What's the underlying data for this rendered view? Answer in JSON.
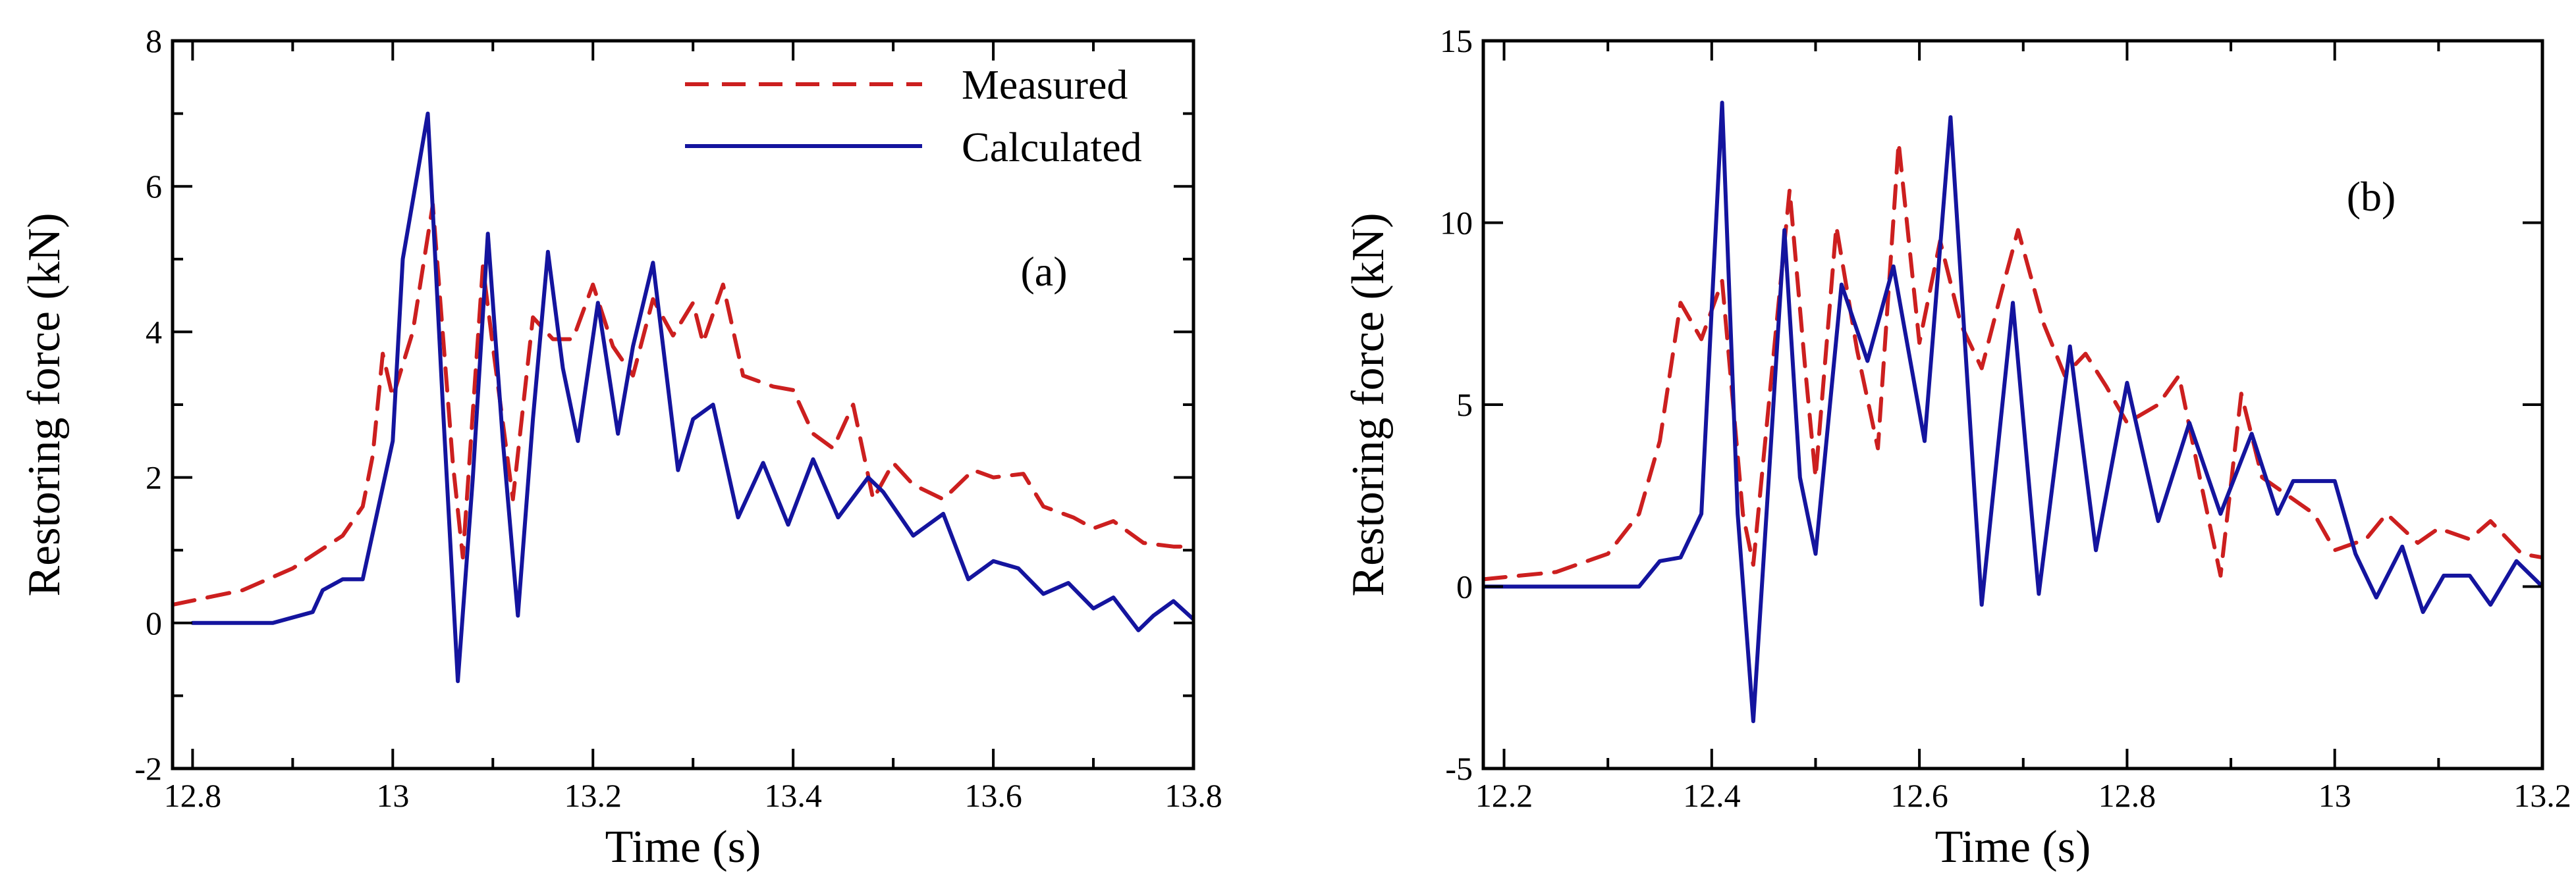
{
  "colors": {
    "measured": "#cc1f1f",
    "calculated": "#14149e",
    "axis": "#000000"
  },
  "legend": {
    "measured_label": "Measured",
    "calculated_label": "Calculated"
  },
  "chart_data": [
    {
      "type": "line",
      "panel_label": "(a)",
      "title": "",
      "xlabel": "Time (s)",
      "ylabel": "Restoring force (kN)",
      "xlim": [
        12.78,
        13.8
      ],
      "ylim": [
        -2,
        8
      ],
      "xticks": [
        12.8,
        12.9,
        13.0,
        13.1,
        13.2,
        13.3,
        13.4,
        13.5,
        13.6,
        13.7,
        13.8
      ],
      "xtick_labels": [
        "12.8",
        "13",
        "13.2",
        "13.4",
        "13.6",
        "13.8"
      ],
      "yticks": [
        -2,
        -1,
        0,
        1,
        2,
        3,
        4,
        5,
        6,
        7,
        8
      ],
      "ytick_labels": [
        "-2",
        "0",
        "2",
        "4",
        "6",
        "8"
      ],
      "legend_position": "top-right",
      "series": [
        {
          "name": "Measured",
          "style": "dashed",
          "x": [
            12.78,
            12.85,
            12.9,
            12.95,
            12.97,
            12.98,
            12.99,
            13.0,
            13.02,
            13.04,
            13.06,
            13.07,
            13.09,
            13.1,
            13.12,
            13.14,
            13.16,
            13.18,
            13.2,
            13.22,
            13.24,
            13.26,
            13.28,
            13.3,
            13.31,
            13.33,
            13.35,
            13.38,
            13.4,
            13.42,
            13.44,
            13.46,
            13.48,
            13.5,
            13.52,
            13.55,
            13.58,
            13.6,
            13.63,
            13.65,
            13.68,
            13.7,
            13.72,
            13.75,
            13.78,
            13.8
          ],
          "values": [
            0.25,
            0.45,
            0.75,
            1.2,
            1.6,
            2.3,
            3.7,
            3.1,
            4.0,
            5.75,
            2.2,
            0.9,
            4.9,
            3.8,
            1.7,
            4.2,
            3.9,
            3.9,
            4.65,
            3.8,
            3.4,
            4.45,
            3.95,
            4.4,
            3.85,
            4.65,
            3.4,
            3.25,
            3.2,
            2.6,
            2.4,
            3.0,
            1.7,
            2.2,
            1.9,
            1.7,
            2.1,
            2.0,
            2.05,
            1.6,
            1.45,
            1.3,
            1.4,
            1.1,
            1.05,
            1.05
          ]
        },
        {
          "name": "Calculated",
          "style": "solid",
          "x": [
            12.8,
            12.88,
            12.92,
            12.93,
            12.95,
            12.97,
            13.0,
            13.01,
            13.035,
            13.05,
            13.065,
            13.08,
            13.095,
            13.11,
            13.125,
            13.14,
            13.155,
            13.17,
            13.185,
            13.205,
            13.225,
            13.24,
            13.26,
            13.285,
            13.3,
            13.32,
            13.345,
            13.37,
            13.395,
            13.42,
            13.445,
            13.475,
            13.49,
            13.52,
            13.55,
            13.575,
            13.6,
            13.625,
            13.65,
            13.675,
            13.7,
            13.72,
            13.745,
            13.76,
            13.78,
            13.8
          ],
          "values": [
            0.0,
            0.0,
            0.15,
            0.45,
            0.6,
            0.6,
            2.5,
            5.0,
            7.0,
            3.0,
            -0.8,
            2.0,
            5.35,
            2.5,
            0.1,
            2.8,
            5.1,
            3.5,
            2.5,
            4.4,
            2.6,
            3.8,
            4.95,
            2.1,
            2.8,
            3.0,
            1.45,
            2.2,
            1.35,
            2.25,
            1.45,
            2.0,
            1.8,
            1.2,
            1.5,
            0.6,
            0.85,
            0.75,
            0.4,
            0.55,
            0.2,
            0.35,
            -0.1,
            0.1,
            0.3,
            0.05
          ]
        }
      ]
    },
    {
      "type": "line",
      "panel_label": "(b)",
      "title": "",
      "xlabel": "Time (s)",
      "ylabel": "Restoring force (kN)",
      "xlim": [
        12.18,
        13.2
      ],
      "ylim": [
        -5,
        15
      ],
      "xticks": [
        12.2,
        12.3,
        12.4,
        12.5,
        12.6,
        12.7,
        12.8,
        12.9,
        13.0,
        13.1,
        13.2
      ],
      "xtick_labels": [
        "12.2",
        "12.4",
        "12.6",
        "12.8",
        "13",
        "13.2"
      ],
      "yticks": [
        -5,
        0,
        5,
        10,
        15
      ],
      "ytick_labels": [
        "-5",
        "0",
        "5",
        "10",
        "15"
      ],
      "series": [
        {
          "name": "Measured",
          "style": "dashed",
          "x": [
            12.18,
            12.25,
            12.3,
            12.33,
            12.35,
            12.37,
            12.39,
            12.41,
            12.43,
            12.44,
            12.46,
            12.475,
            12.49,
            12.5,
            12.52,
            12.54,
            12.56,
            12.58,
            12.6,
            12.62,
            12.64,
            12.66,
            12.68,
            12.695,
            12.72,
            12.74,
            12.76,
            12.78,
            12.8,
            12.83,
            12.85,
            12.87,
            12.89,
            12.91,
            12.93,
            12.95,
            12.98,
            13.0,
            13.03,
            13.05,
            13.08,
            13.1,
            13.13,
            13.15,
            13.18,
            13.2
          ],
          "values": [
            0.2,
            0.4,
            0.9,
            2.0,
            4.0,
            7.8,
            6.8,
            8.4,
            2.0,
            0.6,
            6.5,
            10.9,
            6.0,
            3.0,
            9.9,
            6.5,
            3.8,
            12.2,
            6.7,
            9.5,
            7.2,
            6.0,
            8.2,
            9.8,
            7.2,
            5.8,
            6.4,
            5.5,
            4.5,
            5.0,
            5.8,
            3.0,
            0.3,
            5.3,
            3.0,
            2.6,
            2.0,
            1.0,
            1.3,
            2.0,
            1.2,
            1.6,
            1.3,
            1.8,
            0.9,
            0.8
          ]
        },
        {
          "name": "Calculated",
          "style": "solid",
          "x": [
            12.18,
            12.33,
            12.35,
            12.37,
            12.39,
            12.41,
            12.425,
            12.44,
            12.455,
            12.47,
            12.485,
            12.5,
            12.525,
            12.55,
            12.575,
            12.605,
            12.63,
            12.66,
            12.69,
            12.715,
            12.745,
            12.77,
            12.8,
            12.83,
            12.86,
            12.89,
            12.92,
            12.945,
            12.96,
            12.98,
            13.0,
            13.02,
            13.04,
            13.065,
            13.085,
            13.105,
            13.13,
            13.15,
            13.175,
            13.2
          ],
          "values": [
            0.0,
            0.0,
            0.7,
            0.8,
            2.0,
            13.3,
            2.0,
            -3.7,
            3.0,
            9.8,
            3.0,
            0.9,
            8.3,
            6.2,
            8.8,
            4.0,
            12.9,
            -0.5,
            7.8,
            -0.2,
            6.6,
            1.0,
            5.6,
            1.8,
            4.5,
            2.0,
            4.2,
            2.0,
            2.9,
            2.9,
            2.9,
            0.9,
            -0.3,
            1.1,
            -0.7,
            0.3,
            0.3,
            -0.5,
            0.7,
            0.0
          ]
        }
      ]
    }
  ]
}
